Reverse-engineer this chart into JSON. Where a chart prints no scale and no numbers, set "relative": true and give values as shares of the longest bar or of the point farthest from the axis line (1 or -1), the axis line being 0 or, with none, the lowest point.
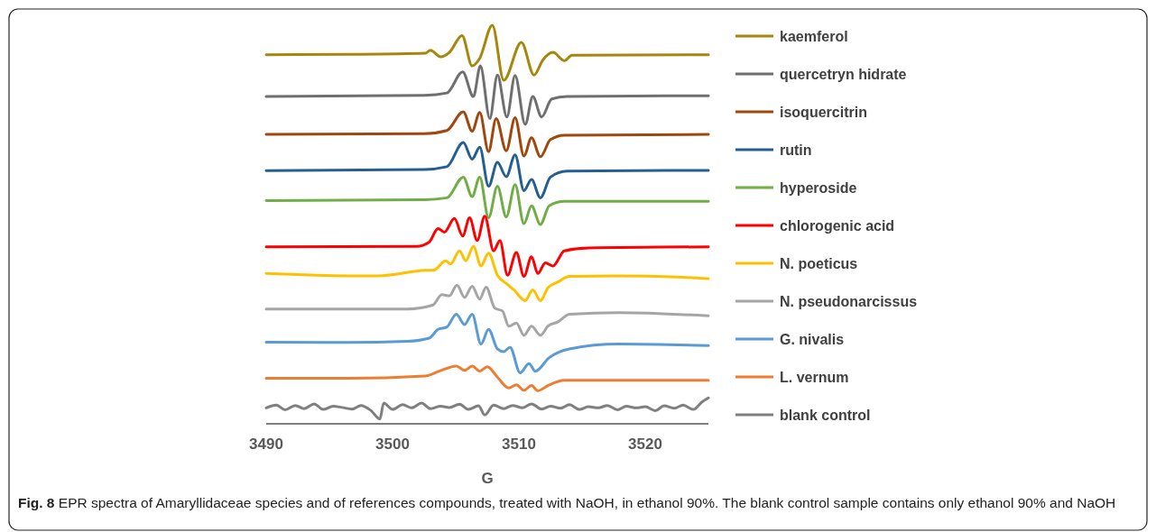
{
  "chart_data": {
    "type": "line",
    "relative": true,
    "xlabel": "G",
    "xlim": [
      3490,
      3525
    ],
    "xticks": [
      3490,
      3500,
      3510,
      3520
    ],
    "tick_labels": "x",
    "legend": "right",
    "marker": "none",
    "line_style": "solid",
    "grid": false,
    "annotations": [
      "Fig. 8 EPR spectra of Amaryllidaceae species and of references compounds, treated with NaOH, in ethanol 90%. The blank control sample contains only ethanol 90% and NaOH"
    ],
    "series": [
      {
        "name": "kaemferol",
        "color": "#a5870c",
        "x": [
          3490,
          3496.4,
          3502.6,
          3503.0,
          3503.8,
          3504.5,
          3505.5,
          3506.3,
          3506.9,
          3507.9,
          3508.8,
          3510.2,
          3511.2,
          3511.9,
          3512.7,
          3513.6,
          3514.2,
          3525
        ],
        "values": [
          0.926,
          0.927,
          0.93,
          0.937,
          0.921,
          0.932,
          0.974,
          0.898,
          0.917,
          1,
          0.862,
          0.957,
          0.875,
          0.913,
          0.932,
          0.911,
          0.925,
          0.926
        ]
      },
      {
        "name": "quercetryn hidrate",
        "color": "#6f6f6f",
        "x": [
          3490,
          3502.5,
          3504.3,
          3505.55,
          3506.4,
          3506.95,
          3507.7,
          3508.3,
          3509.05,
          3509.7,
          3510.5,
          3511.1,
          3511.8,
          3512.6,
          3513.8,
          3525
        ],
        "values": [
          0.821,
          0.824,
          0.83,
          0.883,
          0.821,
          0.898,
          0.766,
          0.875,
          0.77,
          0.874,
          0.751,
          0.821,
          0.77,
          0.815,
          0.821,
          0.823
        ]
      },
      {
        "name": "isoquercitrin",
        "color": "#9e480e",
        "x": [
          3490,
          3502.5,
          3504.3,
          3505.6,
          3506.3,
          3506.9,
          3507.6,
          3508.2,
          3509.0,
          3509.7,
          3510.4,
          3511.0,
          3511.7,
          3512.5,
          3513.6,
          3525
        ],
        "values": [
          0.726,
          0.728,
          0.736,
          0.783,
          0.734,
          0.781,
          0.683,
          0.766,
          0.685,
          0.768,
          0.672,
          0.718,
          0.67,
          0.713,
          0.724,
          0.726
        ]
      },
      {
        "name": "rutin",
        "color": "#255e91",
        "x": [
          3490,
          3502.5,
          3504.3,
          3505.6,
          3506.3,
          3506.9,
          3507.6,
          3508.3,
          3509.0,
          3509.7,
          3510.4,
          3511.0,
          3511.7,
          3512.5,
          3513.8,
          3525
        ],
        "values": [
          0.635,
          0.638,
          0.645,
          0.706,
          0.664,
          0.694,
          0.596,
          0.656,
          0.62,
          0.675,
          0.585,
          0.613,
          0.567,
          0.619,
          0.634,
          0.636
        ]
      },
      {
        "name": "hyperoside",
        "color": "#70ad47",
        "x": [
          3490,
          3502.5,
          3504.3,
          3505.6,
          3506.3,
          3506.9,
          3507.6,
          3508.3,
          3509.0,
          3509.7,
          3510.4,
          3511.0,
          3511.7,
          3512.4,
          3513.6,
          3525
        ],
        "values": [
          0.56,
          0.562,
          0.567,
          0.619,
          0.57,
          0.619,
          0.517,
          0.596,
          0.519,
          0.6,
          0.502,
          0.547,
          0.5,
          0.547,
          0.558,
          0.558
        ]
      },
      {
        "name": "chlorogenic acid",
        "color": "#ff0000",
        "x": [
          3490,
          3501.9,
          3502.9,
          3503.6,
          3504.1,
          3504.9,
          3505.55,
          3506.1,
          3506.7,
          3507.3,
          3508.0,
          3508.5,
          3509.1,
          3509.8,
          3510.4,
          3511.0,
          3511.5,
          3512.1,
          3512.7,
          3513.6,
          3515.5,
          3525
        ],
        "values": [
          0.444,
          0.445,
          0.456,
          0.49,
          0.481,
          0.515,
          0.471,
          0.517,
          0.46,
          0.521,
          0.434,
          0.46,
          0.373,
          0.43,
          0.37,
          0.419,
          0.377,
          0.404,
          0.396,
          0.434,
          0.441,
          0.444
        ]
      },
      {
        "name": "N. poeticus",
        "color": "#ffc000",
        "x": [
          3490,
          3494.0,
          3498.8,
          3502.6,
          3503.3,
          3504.2,
          3504.6,
          3505.3,
          3505.8,
          3506.4,
          3507.0,
          3507.6,
          3508.3,
          3509.05,
          3509.6,
          3510.5,
          3511.1,
          3511.7,
          3512.3,
          3513.1,
          3514.0,
          3517.9,
          3522.6,
          3525
        ],
        "values": [
          0.377,
          0.373,
          0.371,
          0.385,
          0.386,
          0.409,
          0.401,
          0.434,
          0.409,
          0.445,
          0.396,
          0.428,
          0.373,
          0.351,
          0.336,
          0.309,
          0.336,
          0.309,
          0.341,
          0.356,
          0.37,
          0.371,
          0.368,
          0.364
        ]
      },
      {
        "name": "N. pseudonarcissus",
        "color": "#a5a5a5",
        "x": [
          3490,
          3496.4,
          3501.2,
          3503.2,
          3503.9,
          3504.5,
          3505.1,
          3505.7,
          3506.3,
          3506.9,
          3507.4,
          3508.1,
          3508.7,
          3509.2,
          3509.8,
          3510.4,
          3511.0,
          3511.7,
          3512.3,
          3513.1,
          3514.0,
          3517.9,
          3525
        ],
        "values": [
          0.288,
          0.288,
          0.288,
          0.298,
          0.324,
          0.321,
          0.348,
          0.317,
          0.345,
          0.313,
          0.343,
          0.29,
          0.283,
          0.245,
          0.253,
          0.222,
          0.245,
          0.222,
          0.245,
          0.256,
          0.275,
          0.279,
          0.271
        ]
      },
      {
        "name": "G. nivalis",
        "color": "#5b9bd5",
        "x": [
          3490,
          3496.4,
          3501.2,
          3502.9,
          3503.6,
          3504.3,
          3505.05,
          3505.7,
          3506.3,
          3507.0,
          3507.6,
          3508.3,
          3508.8,
          3509.3,
          3510.1,
          3510.8,
          3511.3,
          3512.4,
          3514.0,
          3517.9,
          3525
        ],
        "values": [
          0.205,
          0.204,
          0.207,
          0.215,
          0.237,
          0.243,
          0.275,
          0.249,
          0.275,
          0.2,
          0.237,
          0.188,
          0.181,
          0.192,
          0.128,
          0.151,
          0.132,
          0.166,
          0.188,
          0.2,
          0.196
        ]
      },
      {
        "name": "L. vernum",
        "color": "#ed7d31",
        "x": [
          3490,
          3496.4,
          3502.6,
          3503.7,
          3505.05,
          3505.7,
          3506.3,
          3506.9,
          3507.5,
          3508.3,
          3509.2,
          3509.8,
          3510.4,
          3511.0,
          3511.5,
          3512.3,
          3513.6,
          3525
        ],
        "values": [
          0.114,
          0.114,
          0.12,
          0.132,
          0.145,
          0.134,
          0.145,
          0.132,
          0.143,
          0.117,
          0.09,
          0.098,
          0.084,
          0.096,
          0.083,
          0.096,
          0.109,
          0.109
        ]
      },
      {
        "name": "blank control",
        "color": "#7f7f7f",
        "x": [
          3490,
          3490.8,
          3491.5,
          3492.3,
          3493,
          3493.8,
          3494.5,
          3495.3,
          3496,
          3496.8,
          3497.5,
          3498.3,
          3499.0,
          3499.3,
          3500,
          3500.8,
          3501.5,
          3502.3,
          3503,
          3503.8,
          3504.5,
          3505.3,
          3506,
          3506.8,
          3507.3,
          3508,
          3508.8,
          3509.5,
          3510.3,
          3511,
          3511.8,
          3512.5,
          3513.3,
          3514,
          3514.8,
          3515.5,
          3516.3,
          3517,
          3517.8,
          3518.5,
          3519.3,
          3520,
          3520.8,
          3521.5,
          3522.3,
          3523,
          3523.8,
          3524.5,
          3525
        ],
        "values": [
          0.04,
          0.047,
          0.035,
          0.046,
          0.038,
          0.05,
          0.036,
          0.044,
          0.041,
          0.037,
          0.046,
          0.033,
          0.012,
          0.052,
          0.036,
          0.048,
          0.04,
          0.052,
          0.038,
          0.044,
          0.041,
          0.049,
          0.036,
          0.045,
          0.022,
          0.047,
          0.038,
          0.046,
          0.04,
          0.05,
          0.037,
          0.044,
          0.039,
          0.048,
          0.036,
          0.043,
          0.04,
          0.046,
          0.035,
          0.044,
          0.04,
          0.043,
          0.033,
          0.045,
          0.039,
          0.047,
          0.036,
          0.055,
          0.065
        ]
      }
    ]
  }
}
